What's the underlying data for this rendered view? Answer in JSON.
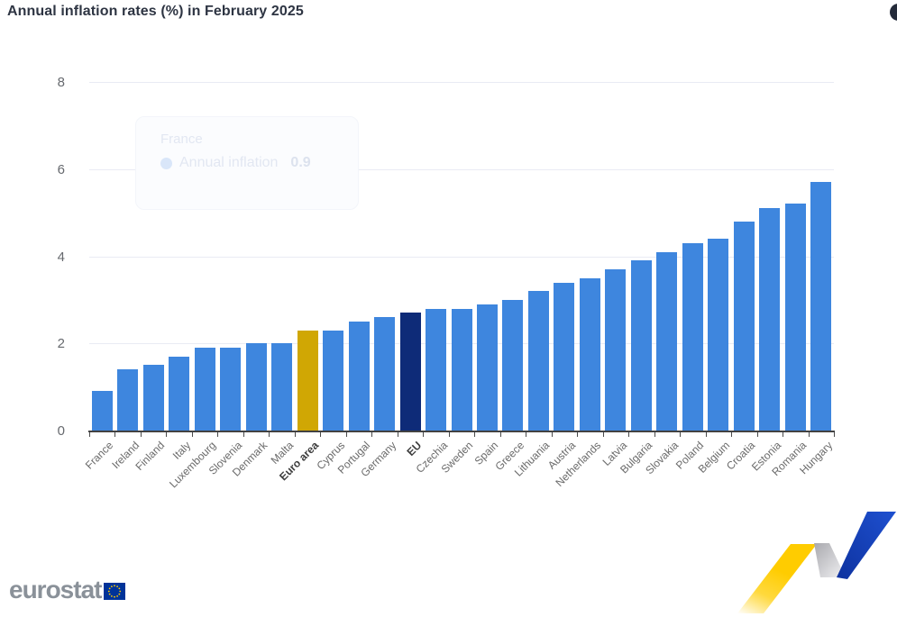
{
  "header": {
    "title": "Annual inflation rates (%) in February 2025"
  },
  "chart_data": {
    "type": "bar",
    "title": "Annual inflation rates (%) in February 2025",
    "series_name": "Annual inflation",
    "categories": [
      "France",
      "Ireland",
      "Finland",
      "Italy",
      "Luxembourg",
      "Slovenia",
      "Denmark",
      "Malta",
      "Euro area",
      "Cyprus",
      "Portugal",
      "Germany",
      "EU",
      "Czechia",
      "Sweden",
      "Spain",
      "Greece",
      "Lithuania",
      "Austria",
      "Netherlands",
      "Latvia",
      "Bulgaria",
      "Slovakia",
      "Poland",
      "Belgium",
      "Croatia",
      "Estonia",
      "Romania",
      "Hungary"
    ],
    "values": [
      0.9,
      1.4,
      1.5,
      1.7,
      1.9,
      1.9,
      2.0,
      2.0,
      2.3,
      2.3,
      2.5,
      2.6,
      2.7,
      2.8,
      2.8,
      2.9,
      3.0,
      3.2,
      3.4,
      3.5,
      3.7,
      3.9,
      4.1,
      4.3,
      4.4,
      4.8,
      5.1,
      5.2,
      5.7
    ],
    "bold_categories": [
      "Euro area",
      "EU"
    ],
    "ylim": [
      0,
      8
    ],
    "yticks": [
      0,
      2,
      4,
      6,
      8
    ],
    "grid": true,
    "legend_position": "none",
    "colors": {
      "default": "#3e86de",
      "euro_area": "#d0a704",
      "eu": "#0e2b78"
    },
    "highlight": {
      "Euro area": "euro_area",
      "EU": "eu"
    }
  },
  "tooltip": {
    "country": "France",
    "series_label": "Annual inflation",
    "value": "0.9"
  },
  "footer": {
    "brand": "eurostat"
  },
  "icons": {
    "menu_button": "context-menu-icon",
    "eu_flag": "eu-flag-icon",
    "ribbon": "eurostat-trend-ribbon"
  },
  "flag_colors": {
    "background": "#003399",
    "stars": "#ffcc00"
  },
  "ribbon_colors": {
    "yellow": "#ffcc00",
    "gray": "#b9b9bd",
    "blue": "#1545be"
  }
}
